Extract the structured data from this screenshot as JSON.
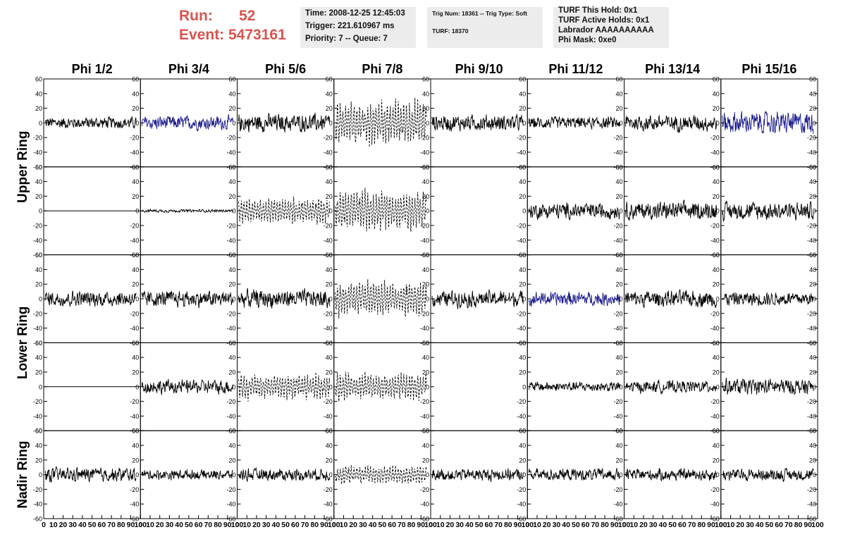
{
  "header": {
    "run_label": "Run:",
    "run_value": "52",
    "event_label": "Event:",
    "event_value": "5473161",
    "time_box": {
      "time": "Time: 2008-12-25 12:45:03",
      "trigger": "Trigger: 221.610967 ms",
      "priority": "Priority: 7 -- Queue: 7"
    },
    "trig_box": {
      "trig": "Trig Num: 18361 -- Trig Type: Soft",
      "turf": "TURF: 18370"
    },
    "turf_box": {
      "this_hold": "TURF This Hold: 0x1",
      "active_holds": "TURF Active Holds: 0x1",
      "labrador": "Labrador AAAAAAAAAA",
      "phi_mask": "Phi Mask: 0xe0"
    }
  },
  "chart_data": {
    "type": "line",
    "columns": [
      "Phi 1/2",
      "Phi 3/4",
      "Phi 5/6",
      "Phi 7/8",
      "Phi 9/10",
      "Phi 11/12",
      "Phi 13/14",
      "Phi 15/16"
    ],
    "ring_labels": [
      "Upper Ring",
      "Lower Ring",
      "Nadir Ring"
    ],
    "ylim": [
      -60,
      60
    ],
    "yticks": [
      60,
      40,
      20,
      0,
      -20,
      -40,
      -60
    ],
    "xlim": [
      0,
      100
    ],
    "xticks": [
      0,
      10,
      20,
      30,
      40,
      50,
      60,
      70,
      80,
      90,
      100
    ],
    "xtick_labels": [
      "0",
      "10",
      "20",
      "30",
      "40",
      "50",
      "60",
      "70",
      "80",
      "90",
      "100"
    ],
    "colors": {
      "normal": "#000000",
      "triggered": "#1a1a8c",
      "frame": "#000000"
    },
    "panel_rows": [
      {
        "ring": "Upper Ring",
        "amplitudes": [
          12,
          14,
          18,
          28,
          16,
          12,
          16,
          22
        ],
        "styles": [
          "solid",
          "blue",
          "solid",
          "dashed",
          "solid",
          "solid",
          "solid",
          "blue"
        ]
      },
      {
        "ring": "Upper Ring",
        "amplitudes": [
          0,
          3,
          16,
          26,
          0,
          16,
          18,
          18
        ],
        "styles": [
          "flat",
          "solid",
          "dashed",
          "dashed",
          "none",
          "solid",
          "solid",
          "solid"
        ]
      },
      {
        "ring": "Lower Ring",
        "amplitudes": [
          16,
          16,
          18,
          22,
          16,
          14,
          16,
          14
        ],
        "styles": [
          "solid",
          "solid",
          "solid",
          "dashed",
          "solid",
          "blue",
          "solid",
          "solid"
        ]
      },
      {
        "ring": "Lower Ring",
        "amplitudes": [
          0,
          14,
          16,
          18,
          0,
          10,
          12,
          16
        ],
        "styles": [
          "flat",
          "solid",
          "dashed",
          "dashed",
          "none",
          "solid",
          "solid",
          "solid"
        ]
      },
      {
        "ring": "Nadir Ring",
        "amplitudes": [
          14,
          10,
          12,
          12,
          12,
          12,
          12,
          12
        ],
        "styles": [
          "solid",
          "solid",
          "solid",
          "dashed",
          "solid",
          "solid",
          "solid",
          "solid"
        ]
      }
    ]
  }
}
